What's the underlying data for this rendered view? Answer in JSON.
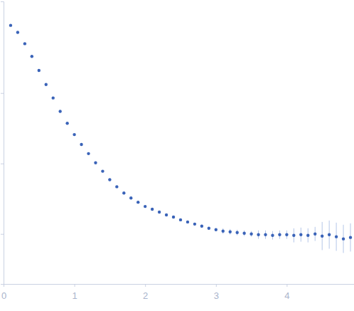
{
  "chart_data": {
    "type": "scatter",
    "x": [
      0.1,
      0.2,
      0.3,
      0.4,
      0.5,
      0.6,
      0.7,
      0.8,
      0.9,
      1.0,
      1.1,
      1.2,
      1.3,
      1.4,
      1.5,
      1.6,
      1.7,
      1.8,
      1.9,
      2.0,
      2.1,
      2.2,
      2.3,
      2.4,
      2.5,
      2.6,
      2.7,
      2.8,
      2.9,
      3.0,
      3.1,
      3.2,
      3.3,
      3.4,
      3.5,
      3.6,
      3.7,
      3.8,
      3.9,
      4.0,
      4.1,
      4.2,
      4.3,
      4.4,
      4.5,
      4.6,
      4.7,
      4.8,
      4.9
    ],
    "values": [
      3.96,
      3.86,
      3.7,
      3.52,
      3.32,
      3.12,
      2.93,
      2.74,
      2.57,
      2.41,
      2.27,
      2.14,
      2.01,
      1.89,
      1.77,
      1.67,
      1.58,
      1.51,
      1.45,
      1.39,
      1.35,
      1.31,
      1.27,
      1.24,
      1.2,
      1.17,
      1.14,
      1.11,
      1.08,
      1.06,
      1.04,
      1.03,
      1.02,
      1.01,
      1.0,
      0.99,
      0.99,
      0.98,
      0.99,
      0.99,
      0.98,
      0.99,
      0.98,
      1.0,
      0.97,
      0.99,
      0.96,
      0.93,
      0.95
    ],
    "errors": [
      0.01,
      0.01,
      0.01,
      0.01,
      0.01,
      0.01,
      0.01,
      0.01,
      0.01,
      0.01,
      0.01,
      0.01,
      0.01,
      0.01,
      0.01,
      0.01,
      0.01,
      0.01,
      0.01,
      0.01,
      0.02,
      0.02,
      0.02,
      0.02,
      0.02,
      0.02,
      0.02,
      0.02,
      0.02,
      0.02,
      0.04,
      0.04,
      0.04,
      0.04,
      0.04,
      0.06,
      0.06,
      0.06,
      0.06,
      0.06,
      0.1,
      0.1,
      0.1,
      0.1,
      0.2,
      0.2,
      0.2,
      0.2,
      0.2
    ],
    "color": "#3a63b8",
    "marker": "circle",
    "xlim": [
      0,
      4.95
    ],
    "ylim": [
      0.29,
      4.3
    ],
    "xticks": [
      0,
      1,
      2,
      3,
      4
    ],
    "yticks": [
      1,
      2,
      3
    ],
    "tick_labels": "x"
  }
}
